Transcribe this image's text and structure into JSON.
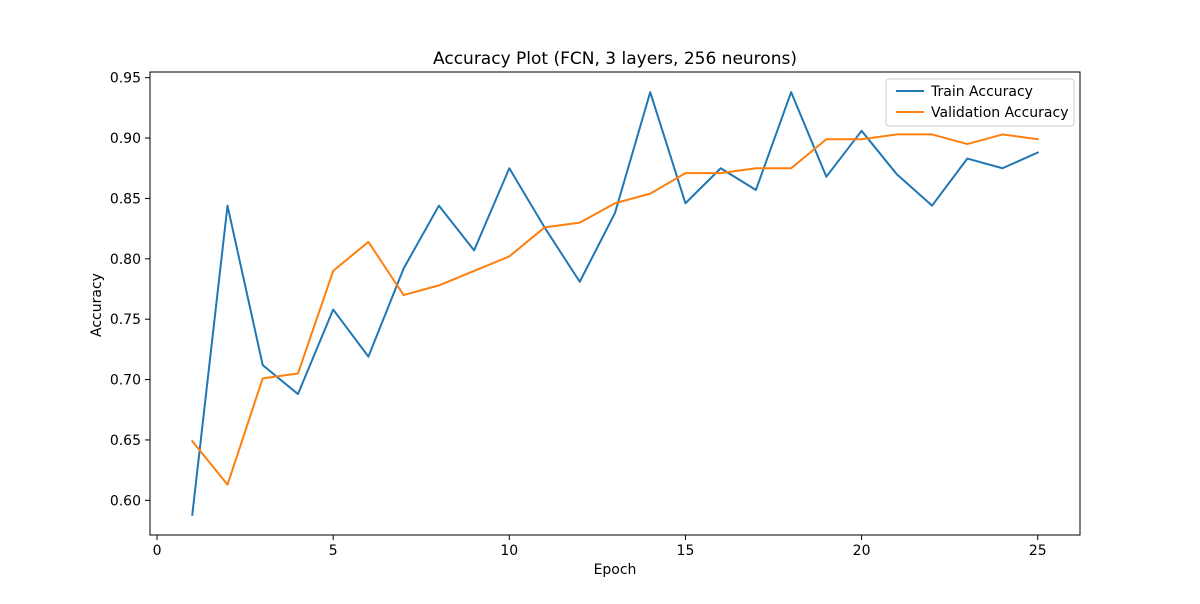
{
  "chart_data": {
    "type": "line",
    "title": "Accuracy Plot (FCN, 3 layers, 256 neurons)",
    "xlabel": "Epoch",
    "ylabel": "Accuracy",
    "x": [
      1,
      2,
      3,
      4,
      5,
      6,
      7,
      8,
      9,
      10,
      11,
      12,
      13,
      14,
      15,
      16,
      17,
      18,
      19,
      20,
      21,
      22,
      23,
      24,
      25
    ],
    "series": [
      {
        "name": "Train Accuracy",
        "color": "#1f77b4",
        "values": [
          0.588,
          0.844,
          0.712,
          0.688,
          0.758,
          0.719,
          0.792,
          0.844,
          0.807,
          0.875,
          0.826,
          0.781,
          0.838,
          0.938,
          0.846,
          0.875,
          0.857,
          0.938,
          0.868,
          0.906,
          0.87,
          0.844,
          0.883,
          0.875,
          0.888
        ]
      },
      {
        "name": "Validation Accuracy",
        "color": "#ff7f0e",
        "values": [
          0.649,
          0.613,
          0.701,
          0.705,
          0.79,
          0.814,
          0.77,
          0.778,
          0.79,
          0.802,
          0.826,
          0.83,
          0.846,
          0.854,
          0.871,
          0.871,
          0.875,
          0.875,
          0.899,
          0.899,
          0.903,
          0.903,
          0.895,
          0.903,
          0.899
        ]
      }
    ],
    "xlim": [
      -0.2,
      26.2
    ],
    "ylim": [
      0.5713,
      0.9547
    ],
    "xticks": [
      0,
      5,
      10,
      15,
      20,
      25
    ],
    "xtick_labels": [
      "0",
      "5",
      "10",
      "15",
      "20",
      "25"
    ],
    "yticks": [
      0.6,
      0.65,
      0.7,
      0.75,
      0.8,
      0.85,
      0.9,
      0.95
    ],
    "ytick_labels": [
      "0.60",
      "0.65",
      "0.70",
      "0.75",
      "0.80",
      "0.85",
      "0.90",
      "0.95"
    ],
    "grid": false,
    "legend_position": "top-right"
  }
}
